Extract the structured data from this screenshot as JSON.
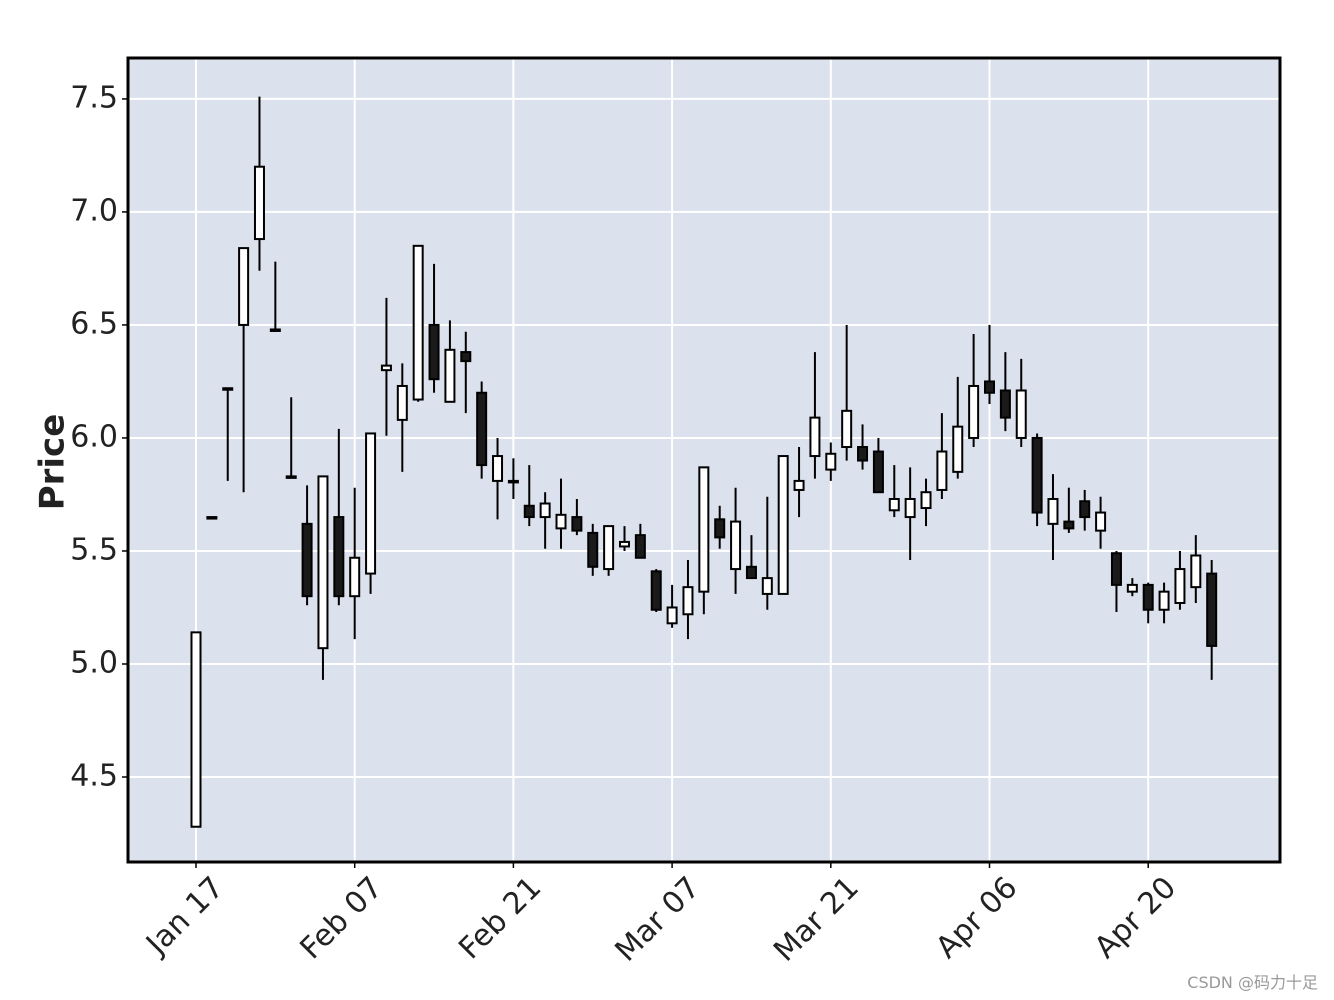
{
  "chart_data": {
    "type": "candlestick",
    "ylabel": "Price",
    "categories": [
      "Jan 17",
      null,
      null,
      null,
      null,
      null,
      null,
      null,
      null,
      null,
      "Feb 07",
      null,
      null,
      null,
      null,
      null,
      null,
      null,
      null,
      null,
      "Feb 21",
      null,
      null,
      null,
      null,
      null,
      null,
      null,
      null,
      null,
      "Mar 07",
      null,
      null,
      null,
      null,
      null,
      null,
      null,
      null,
      null,
      "Mar 21",
      null,
      null,
      null,
      null,
      null,
      null,
      null,
      null,
      null,
      "Apr 06",
      null,
      null,
      null,
      null,
      null,
      null,
      null,
      null,
      null,
      "Apr 20",
      null,
      null,
      null,
      null
    ],
    "open": [
      4.28,
      5.65,
      6.22,
      6.5,
      6.88,
      6.48,
      5.83,
      5.62,
      5.07,
      5.65,
      5.3,
      5.4,
      6.3,
      6.08,
      6.17,
      6.5,
      6.16,
      6.38,
      6.2,
      5.81,
      5.81,
      5.7,
      5.65,
      5.6,
      5.65,
      5.58,
      5.42,
      5.52,
      5.57,
      5.41,
      5.18,
      5.22,
      5.32,
      5.64,
      5.42,
      5.43,
      5.31,
      5.31,
      5.77,
      5.92,
      5.86,
      5.96,
      5.96,
      5.94,
      5.68,
      5.65,
      5.69,
      5.77,
      5.85,
      6.0,
      6.25,
      6.21,
      6.0,
      6.0,
      5.62,
      5.63,
      5.72,
      5.59,
      5.49,
      5.32,
      5.35,
      5.24,
      5.27,
      5.34,
      5.4
    ],
    "high": [
      5.14,
      5.65,
      6.22,
      6.84,
      7.51,
      6.78,
      6.18,
      5.79,
      5.83,
      6.04,
      5.78,
      6.02,
      6.62,
      6.33,
      6.85,
      6.77,
      6.52,
      6.47,
      6.25,
      6.0,
      5.91,
      5.88,
      5.76,
      5.82,
      5.73,
      5.62,
      5.61,
      5.61,
      5.62,
      5.42,
      5.35,
      5.46,
      5.87,
      5.7,
      5.78,
      5.57,
      5.74,
      5.92,
      5.96,
      6.38,
      5.98,
      6.5,
      6.06,
      6.0,
      5.88,
      5.87,
      5.82,
      6.11,
      6.27,
      6.46,
      6.5,
      6.38,
      6.35,
      6.02,
      5.84,
      5.78,
      5.77,
      5.74,
      5.5,
      5.38,
      5.36,
      5.36,
      5.5,
      5.57,
      5.46
    ],
    "low": [
      4.28,
      5.65,
      5.81,
      5.76,
      6.74,
      6.48,
      5.83,
      5.26,
      4.93,
      5.26,
      5.11,
      5.31,
      6.01,
      5.85,
      6.16,
      6.2,
      6.16,
      6.11,
      5.82,
      5.64,
      5.73,
      5.61,
      5.51,
      5.51,
      5.57,
      5.39,
      5.39,
      5.5,
      5.47,
      5.23,
      5.16,
      5.11,
      5.22,
      5.51,
      5.31,
      5.38,
      5.24,
      5.31,
      5.65,
      5.82,
      5.81,
      5.9,
      5.86,
      5.76,
      5.65,
      5.46,
      5.61,
      5.73,
      5.82,
      5.96,
      6.15,
      6.03,
      5.96,
      5.61,
      5.46,
      5.58,
      5.59,
      5.51,
      5.23,
      5.3,
      5.18,
      5.18,
      5.24,
      5.27,
      4.93
    ],
    "close": [
      5.14,
      5.65,
      6.22,
      6.84,
      7.2,
      6.48,
      5.83,
      5.3,
      5.83,
      5.3,
      5.47,
      6.02,
      6.32,
      6.23,
      6.85,
      6.26,
      6.39,
      6.34,
      5.88,
      5.92,
      5.81,
      5.65,
      5.71,
      5.66,
      5.59,
      5.43,
      5.61,
      5.54,
      5.47,
      5.24,
      5.25,
      5.34,
      5.87,
      5.56,
      5.63,
      5.38,
      5.38,
      5.92,
      5.81,
      6.09,
      5.93,
      6.12,
      5.9,
      5.76,
      5.73,
      5.73,
      5.76,
      5.94,
      6.05,
      6.23,
      6.2,
      6.09,
      6.21,
      5.67,
      5.73,
      5.6,
      5.65,
      5.67,
      5.35,
      5.35,
      5.24,
      5.32,
      5.42,
      5.48,
      5.08
    ],
    "up_color": "#ffffff",
    "down_color": "#1a1a1a",
    "edge_color": "#000000",
    "background": "#dce2ed",
    "ylim": [
      4.124,
      7.681
    ],
    "yticks": [
      4.5,
      {
        "value": 5,
        "label": "5.0"
      },
      5.5,
      {
        "value": 6,
        "label": "6.0"
      },
      6.5,
      {
        "value": 7,
        "label": "7.0"
      },
      7.5
    ],
    "grid": true
  },
  "watermark": "CSDN @码力十足"
}
